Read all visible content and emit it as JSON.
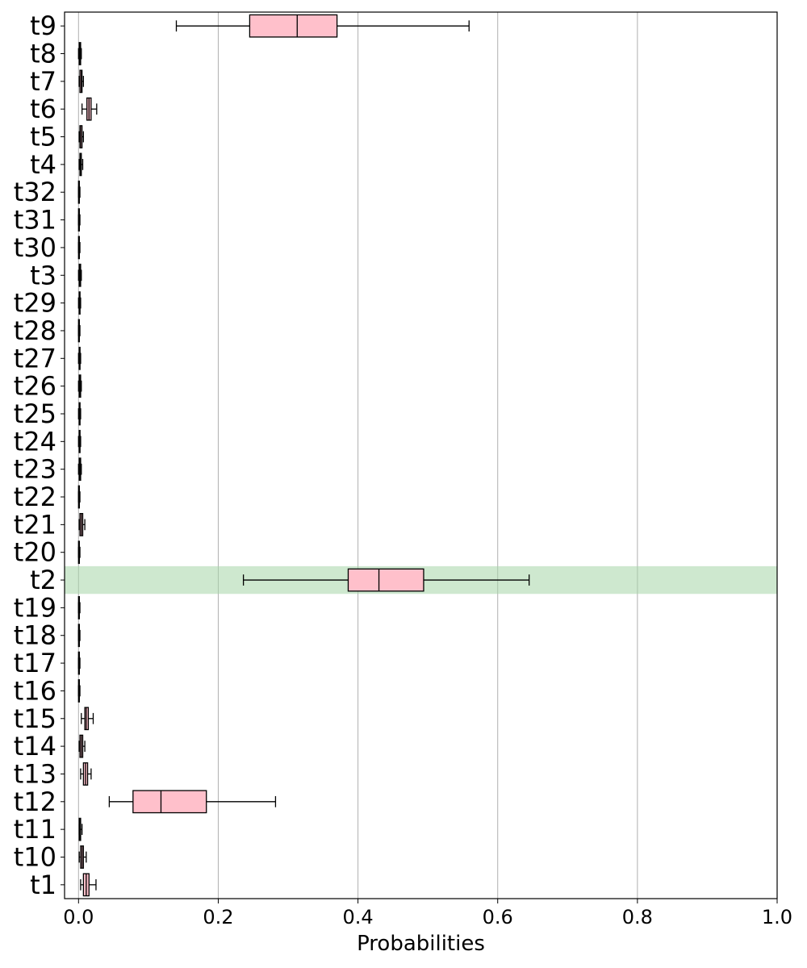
{
  "chart_data": {
    "type": "boxplot",
    "orientation": "horizontal",
    "title": "",
    "xlabel": "Probabilities",
    "ylabel": "",
    "xlim": [
      -0.02,
      1.0
    ],
    "xticks": [
      "0.0",
      "0.2",
      "0.4",
      "0.6",
      "0.8",
      "1.0"
    ],
    "xtick_values": [
      0.0,
      0.2,
      0.4,
      0.6,
      0.8,
      1.0
    ],
    "grid": "vertical",
    "highlight_category": "t2",
    "colors": {
      "box_fill": "#ffc0cb",
      "box_edge": "#000000",
      "highlight": "#a5d6a7",
      "grid": "#b0b0b0"
    },
    "categories_top_to_bottom": [
      "t9",
      "t8",
      "t7",
      "t6",
      "t5",
      "t4",
      "t32",
      "t31",
      "t30",
      "t3",
      "t29",
      "t28",
      "t27",
      "t26",
      "t25",
      "t24",
      "t23",
      "t22",
      "t21",
      "t20",
      "t2",
      "t19",
      "t18",
      "t17",
      "t16",
      "t15",
      "t14",
      "t13",
      "t12",
      "t11",
      "t10",
      "t1"
    ],
    "boxes": [
      {
        "label": "t9",
        "whisker_low": 0.14,
        "q1": 0.245,
        "median": 0.313,
        "q3": 0.37,
        "whisker_high": 0.559
      },
      {
        "label": "t8",
        "whisker_low": 0.0,
        "q1": 0.001,
        "median": 0.002,
        "q3": 0.003,
        "whisker_high": 0.004
      },
      {
        "label": "t7",
        "whisker_low": 0.001,
        "q1": 0.002,
        "median": 0.004,
        "q3": 0.005,
        "whisker_high": 0.007
      },
      {
        "label": "t6",
        "whisker_low": 0.005,
        "q1": 0.012,
        "median": 0.015,
        "q3": 0.018,
        "whisker_high": 0.026
      },
      {
        "label": "t5",
        "whisker_low": 0.001,
        "q1": 0.002,
        "median": 0.003,
        "q3": 0.005,
        "whisker_high": 0.007
      },
      {
        "label": "t4",
        "whisker_low": 0.001,
        "q1": 0.002,
        "median": 0.003,
        "q3": 0.004,
        "whisker_high": 0.006
      },
      {
        "label": "t32",
        "whisker_low": 0.0,
        "q1": 0.0,
        "median": 0.001,
        "q3": 0.001,
        "whisker_high": 0.002
      },
      {
        "label": "t31",
        "whisker_low": 0.0,
        "q1": 0.0,
        "median": 0.001,
        "q3": 0.001,
        "whisker_high": 0.002
      },
      {
        "label": "t30",
        "whisker_low": 0.0,
        "q1": 0.0,
        "median": 0.001,
        "q3": 0.001,
        "whisker_high": 0.002
      },
      {
        "label": "t3",
        "whisker_low": 0.0,
        "q1": 0.001,
        "median": 0.002,
        "q3": 0.003,
        "whisker_high": 0.004
      },
      {
        "label": "t29",
        "whisker_low": 0.0,
        "q1": 0.001,
        "median": 0.001,
        "q3": 0.002,
        "whisker_high": 0.003
      },
      {
        "label": "t28",
        "whisker_low": 0.0,
        "q1": 0.0,
        "median": 0.001,
        "q3": 0.001,
        "whisker_high": 0.002
      },
      {
        "label": "t27",
        "whisker_low": 0.0,
        "q1": 0.001,
        "median": 0.001,
        "q3": 0.002,
        "whisker_high": 0.003
      },
      {
        "label": "t26",
        "whisker_low": 0.0,
        "q1": 0.001,
        "median": 0.002,
        "q3": 0.003,
        "whisker_high": 0.004
      },
      {
        "label": "t25",
        "whisker_low": 0.0,
        "q1": 0.001,
        "median": 0.001,
        "q3": 0.002,
        "whisker_high": 0.003
      },
      {
        "label": "t24",
        "whisker_low": 0.0,
        "q1": 0.001,
        "median": 0.001,
        "q3": 0.002,
        "whisker_high": 0.003
      },
      {
        "label": "t23",
        "whisker_low": 0.0,
        "q1": 0.001,
        "median": 0.002,
        "q3": 0.003,
        "whisker_high": 0.004
      },
      {
        "label": "t22",
        "whisker_low": 0.0,
        "q1": 0.0,
        "median": 0.001,
        "q3": 0.001,
        "whisker_high": 0.002
      },
      {
        "label": "t21",
        "whisker_low": 0.001,
        "q1": 0.002,
        "median": 0.004,
        "q3": 0.006,
        "whisker_high": 0.009
      },
      {
        "label": "t20",
        "whisker_low": 0.0,
        "q1": 0.0,
        "median": 0.001,
        "q3": 0.001,
        "whisker_high": 0.002
      },
      {
        "label": "t2",
        "whisker_low": 0.236,
        "q1": 0.386,
        "median": 0.43,
        "q3": 0.494,
        "whisker_high": 0.645
      },
      {
        "label": "t19",
        "whisker_low": 0.0,
        "q1": 0.0,
        "median": 0.001,
        "q3": 0.001,
        "whisker_high": 0.002
      },
      {
        "label": "t18",
        "whisker_low": 0.0,
        "q1": 0.0,
        "median": 0.001,
        "q3": 0.001,
        "whisker_high": 0.002
      },
      {
        "label": "t17",
        "whisker_low": 0.0,
        "q1": 0.0,
        "median": 0.001,
        "q3": 0.001,
        "whisker_high": 0.002
      },
      {
        "label": "t16",
        "whisker_low": 0.0,
        "q1": 0.0,
        "median": 0.001,
        "q3": 0.001,
        "whisker_high": 0.002
      },
      {
        "label": "t15",
        "whisker_low": 0.004,
        "q1": 0.009,
        "median": 0.011,
        "q3": 0.014,
        "whisker_high": 0.021
      },
      {
        "label": "t14",
        "whisker_low": 0.001,
        "q1": 0.002,
        "median": 0.004,
        "q3": 0.006,
        "whisker_high": 0.009
      },
      {
        "label": "t13",
        "whisker_low": 0.003,
        "q1": 0.007,
        "median": 0.01,
        "q3": 0.013,
        "whisker_high": 0.018
      },
      {
        "label": "t12",
        "whisker_low": 0.044,
        "q1": 0.078,
        "median": 0.118,
        "q3": 0.183,
        "whisker_high": 0.282
      },
      {
        "label": "t11",
        "whisker_low": 0.001,
        "q1": 0.001,
        "median": 0.002,
        "q3": 0.003,
        "whisker_high": 0.005
      },
      {
        "label": "t10",
        "whisker_low": 0.001,
        "q1": 0.003,
        "median": 0.005,
        "q3": 0.007,
        "whisker_high": 0.011
      },
      {
        "label": "t1",
        "whisker_low": 0.003,
        "q1": 0.007,
        "median": 0.011,
        "q3": 0.015,
        "whisker_high": 0.025
      }
    ]
  }
}
